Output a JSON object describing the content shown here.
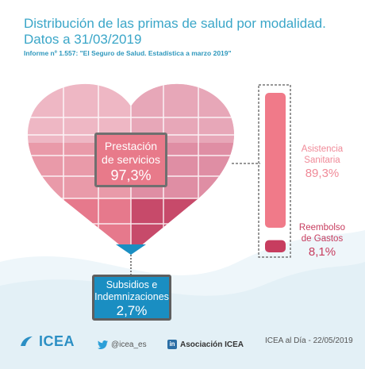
{
  "header": {
    "title_line1": "Distribución de las primas de salud por modalidad.",
    "title_line2": "Datos a 31/03/2019",
    "source": "Informe nº 1.557: \"El Seguro de Salud. Estadística a marzo 2019\""
  },
  "colors": {
    "prestacion": "#e87a8a",
    "asistencia": "#f07a89",
    "reembolso": "#c73d5f",
    "subsidios": "#1a8ec2",
    "accent": "#3aa6c8"
  },
  "chart_data": {
    "type": "pie",
    "title": "Distribución de las primas de salud por modalidad. Datos a 31/03/2019",
    "slices": [
      {
        "label": "Prestación de servicios",
        "value": 97.3,
        "value_label": "97,3%"
      },
      {
        "label": "Subsidios e Indemnizaciones",
        "value": 2.7,
        "value_label": "2,7%"
      }
    ],
    "breakdown": {
      "parent": "Prestación de servicios",
      "type": "bar",
      "items": [
        {
          "label": "Asistencia Sanitaria",
          "value": 89.3,
          "value_label": "89,3%"
        },
        {
          "label": "Reembolso de Gastos",
          "value": 8.1,
          "value_label": "8,1%"
        }
      ]
    }
  },
  "labels": {
    "prestacion_line1": "Prestación",
    "prestacion_line2": "de servicios",
    "subsidios_line1": "Subsidios e",
    "subsidios_line2": "Indemnizaciones",
    "asistencia_line1": "Asistencia",
    "asistencia_line2": "Sanitaria",
    "reembolso_line1": "Reembolso",
    "reembolso_line2": "de Gastos"
  },
  "footer": {
    "logo_text": "ICEA",
    "twitter_icon": "twitter-bird-icon",
    "twitter": "@icea_es",
    "linkedin_icon": "linkedin-icon",
    "linkedin_glyph": "in",
    "linkedin": "Asociación ICEA",
    "date": "ICEA al Día - 22/05/2019"
  }
}
